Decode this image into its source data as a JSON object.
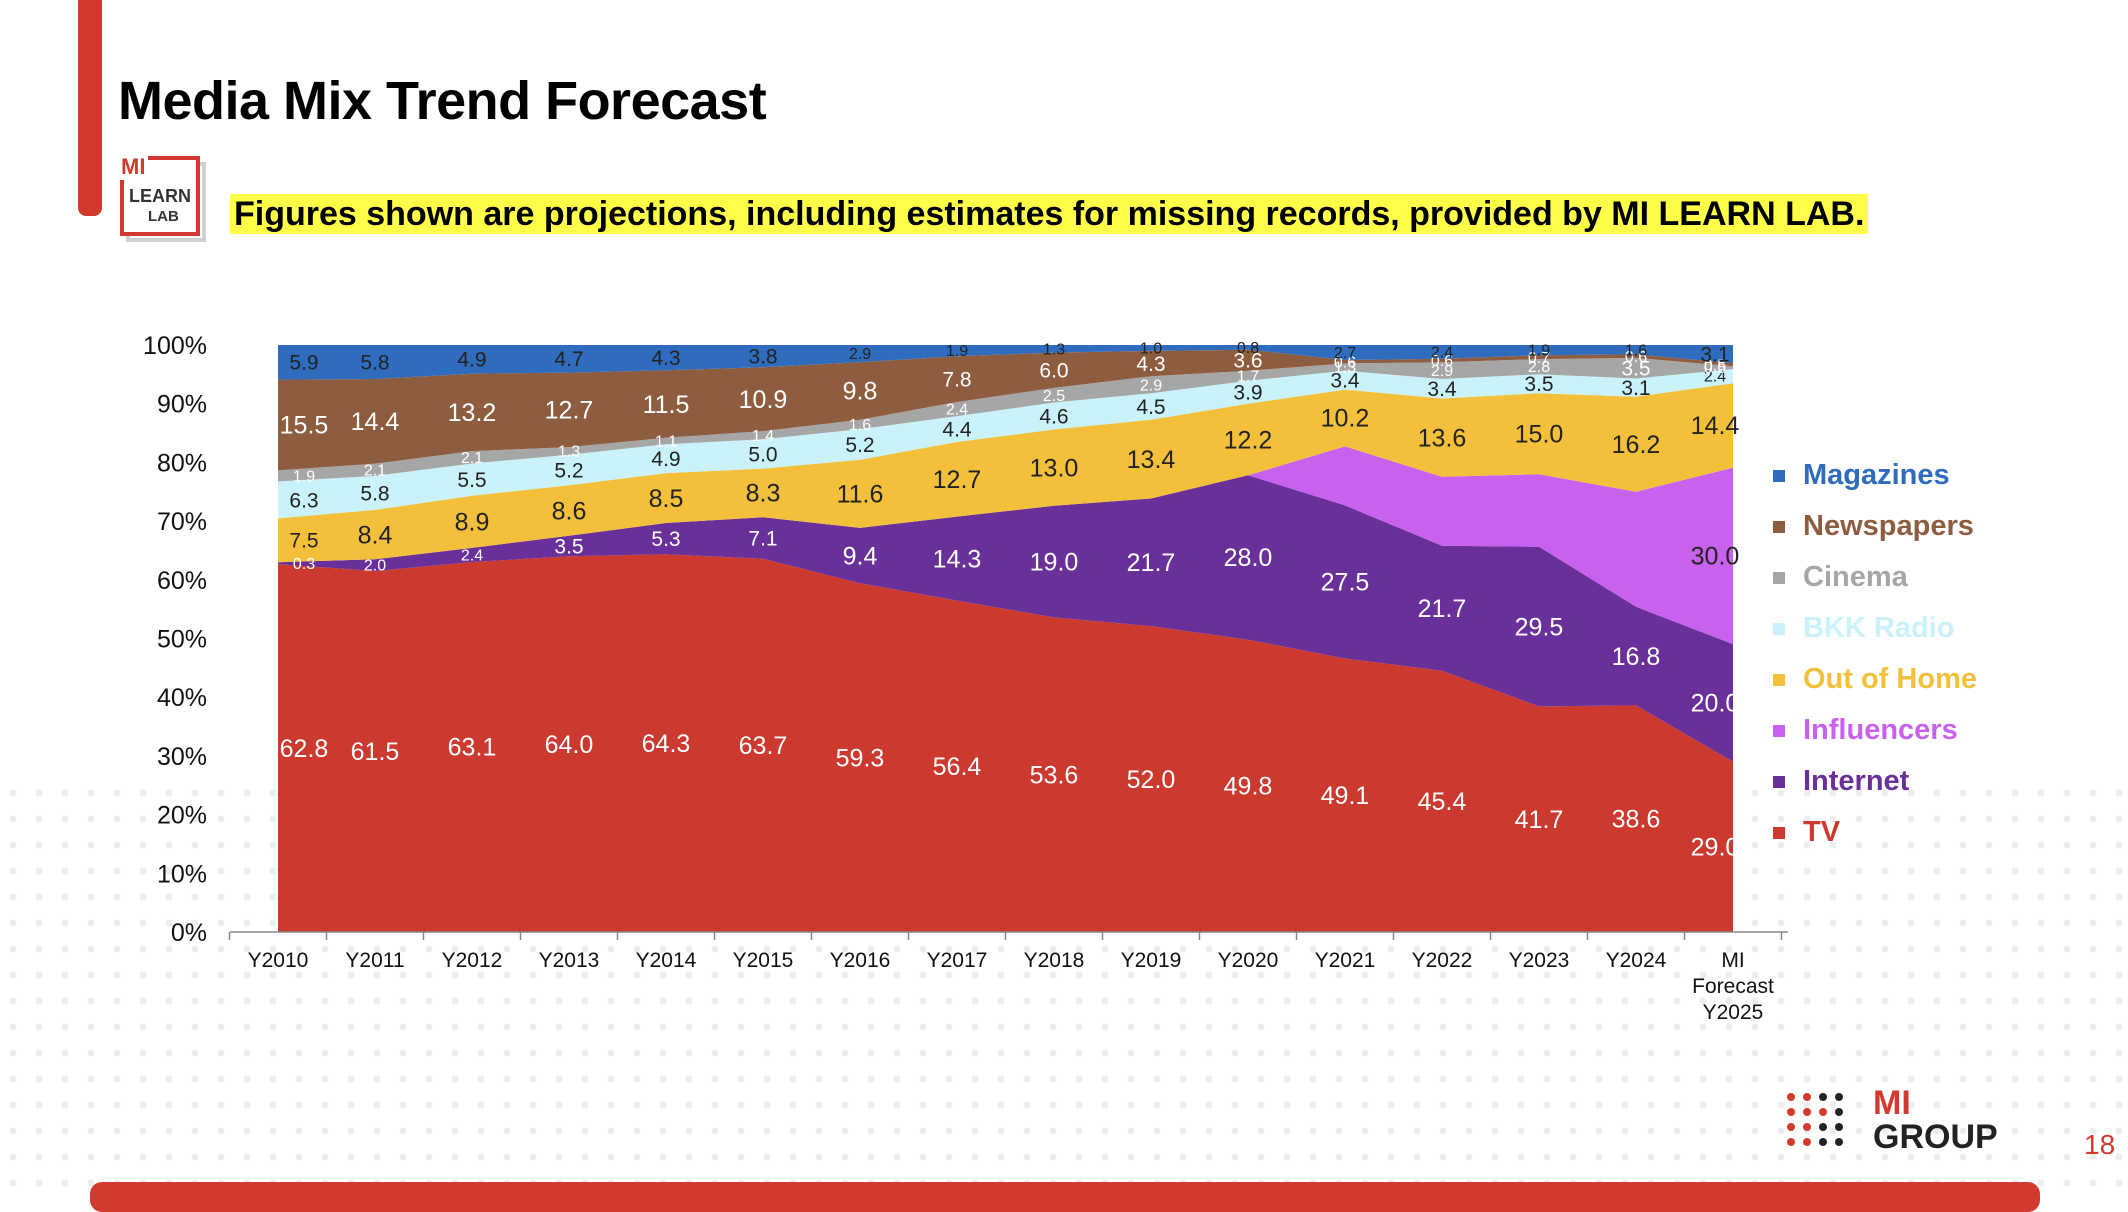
{
  "header": {
    "title": "Media Mix Trend Forecast",
    "subtitle": "Figures shown are projections, including estimates for missing records, provided by MI LEARN LAB.",
    "lab_logo": {
      "line1": "MI",
      "line2": "LEARN",
      "line3": "LAB"
    }
  },
  "footer": {
    "brand_line1": "MI",
    "brand_line2": "GROUP",
    "page_number": "18"
  },
  "chart_data": {
    "type": "area",
    "stacked": true,
    "normalized": true,
    "title": "Media Mix Trend Forecast",
    "ylim": [
      0,
      100
    ],
    "yticks": [
      "0%",
      "10%",
      "20%",
      "30%",
      "40%",
      "50%",
      "60%",
      "70%",
      "80%",
      "90%",
      "100%"
    ],
    "categories": [
      "Y2010",
      "Y2011",
      "Y2012",
      "Y2013",
      "Y2014",
      "Y2015",
      "Y2016",
      "Y2017",
      "Y2018",
      "Y2019",
      "Y2020",
      "Y2021",
      "Y2022",
      "Y2023",
      "Y2024",
      "MI Forecast Y2025"
    ],
    "legend_position": "right",
    "series": [
      {
        "name": "TV",
        "color": "#cc392f",
        "label_color": "#ffffff",
        "values": [
          62.8,
          61.5,
          63.1,
          64.0,
          64.3,
          63.7,
          59.3,
          56.4,
          53.6,
          52.0,
          49.8,
          49.1,
          45.4,
          41.7,
          38.6,
          29.0
        ]
      },
      {
        "name": "Internet",
        "color": "#6a3099",
        "label_color": "#ffffff",
        "values": [
          0.3,
          2.0,
          2.4,
          3.5,
          5.3,
          7.1,
          9.4,
          14.3,
          19.0,
          21.7,
          28.0,
          27.5,
          21.7,
          29.5,
          16.8,
          20.0
        ]
      },
      {
        "name": "Influencers",
        "color": "#c761ee",
        "label_color": "#222222",
        "values": [
          0,
          0,
          0,
          0,
          0,
          0,
          0,
          0,
          0,
          0,
          0,
          10.6,
          12.0,
          13.4,
          19.6,
          30.0
        ],
        "labels": [
          "",
          "",
          "",
          "",
          "",
          "",
          "",
          "",
          "",
          "",
          "",
          "",
          "",
          "",
          "",
          "30.0"
        ]
      },
      {
        "name": "Out of Home",
        "color": "#f4c03b",
        "label_color": "#222222",
        "values": [
          7.5,
          8.4,
          8.9,
          8.6,
          8.5,
          8.3,
          11.6,
          12.7,
          13.0,
          13.4,
          12.2,
          10.2,
          13.6,
          15.0,
          16.2,
          14.4
        ]
      },
      {
        "name": "BKK Radio",
        "color": "#c9f2fa",
        "label_color": "#222222",
        "values": [
          6.3,
          5.8,
          5.5,
          5.2,
          4.9,
          5.0,
          5.2,
          4.4,
          4.6,
          4.5,
          3.9,
          3.4,
          3.4,
          3.5,
          3.1,
          2.4
        ]
      },
      {
        "name": "Cinema",
        "color": "#a6a6a6",
        "label_color": "#ffffff",
        "values": [
          1.9,
          2.1,
          2.1,
          1.3,
          1.1,
          1.4,
          1.6,
          2.4,
          2.5,
          2.9,
          1.7,
          1.3,
          2.9,
          2.8,
          3.5,
          0.5
        ]
      },
      {
        "name": "Newspapers",
        "color": "#8e5c3f",
        "label_color": "#ffffff",
        "values": [
          15.5,
          14.4,
          13.2,
          12.7,
          11.5,
          10.9,
          9.8,
          7.8,
          6.0,
          4.3,
          3.6,
          0.6,
          0.6,
          0.7,
          0.6,
          0.5
        ]
      },
      {
        "name": "Magazines",
        "color": "#2f6cbd",
        "label_color": "#222222",
        "values": [
          5.9,
          5.8,
          4.9,
          4.7,
          4.3,
          3.8,
          2.9,
          1.9,
          1.3,
          1.0,
          0.8,
          2.7,
          2.4,
          1.9,
          1.6,
          3.1
        ]
      }
    ]
  }
}
